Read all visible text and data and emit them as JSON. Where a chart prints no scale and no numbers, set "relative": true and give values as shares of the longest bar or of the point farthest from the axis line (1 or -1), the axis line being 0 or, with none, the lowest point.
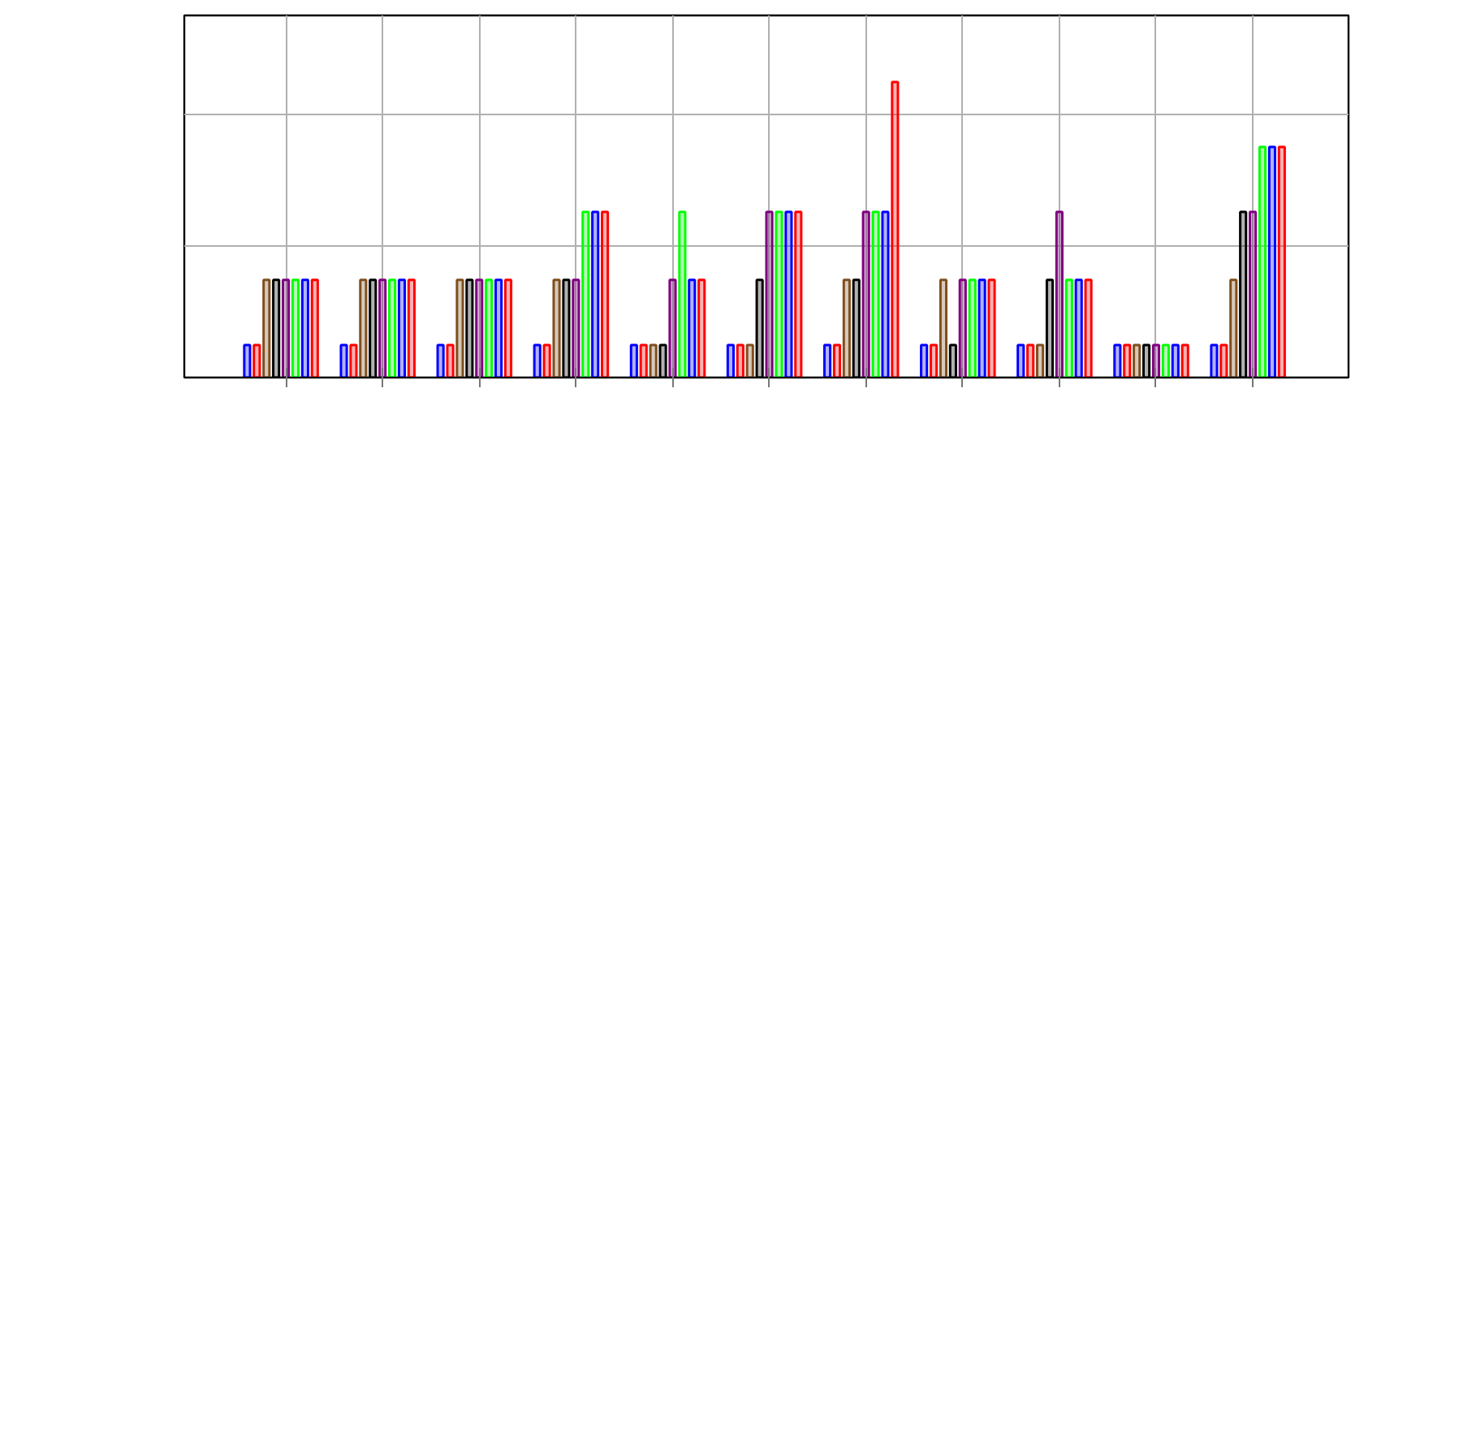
{
  "chart_data": {
    "type": "bar",
    "relative": true,
    "grid": true,
    "categories": [
      null,
      null,
      null,
      null,
      null,
      null,
      null,
      null,
      null,
      null,
      null
    ],
    "series": [
      {
        "color": "#0000ff",
        "values": [
          0.11,
          0.11,
          0.11,
          0.11,
          0.11,
          0.11,
          0.11,
          0.11,
          0.11,
          0.11,
          0.11
        ]
      },
      {
        "color": "#ff0000",
        "values": [
          0.11,
          0.11,
          0.11,
          0.11,
          0.11,
          0.11,
          0.11,
          0.11,
          0.11,
          0.11,
          0.11
        ]
      },
      {
        "color": "#7f4f1f",
        "values": [
          0.33,
          0.33,
          0.33,
          0.33,
          0.11,
          0.11,
          0.33,
          0.33,
          0.11,
          0.11,
          0.33
        ]
      },
      {
        "color": "#000000",
        "values": [
          0.33,
          0.33,
          0.33,
          0.33,
          0.11,
          0.33,
          0.33,
          0.11,
          0.33,
          0.11,
          0.56
        ]
      },
      {
        "color": "#7f007f",
        "values": [
          0.33,
          0.33,
          0.33,
          0.33,
          0.33,
          0.56,
          0.56,
          0.33,
          0.56,
          0.11,
          0.56
        ]
      },
      {
        "color": "#00ff00",
        "values": [
          0.33,
          0.33,
          0.33,
          0.56,
          0.56,
          0.56,
          0.56,
          0.33,
          0.33,
          0.11,
          0.78
        ]
      },
      {
        "color": "#0000ff",
        "values": [
          0.33,
          0.33,
          0.33,
          0.56,
          0.33,
          0.56,
          0.56,
          0.33,
          0.33,
          0.11,
          0.78
        ]
      },
      {
        "color": "#ff0000",
        "values": [
          0.33,
          0.33,
          0.33,
          0.56,
          0.33,
          0.56,
          1,
          0.33,
          0.33,
          0.11,
          0.78
        ]
      }
    ]
  }
}
